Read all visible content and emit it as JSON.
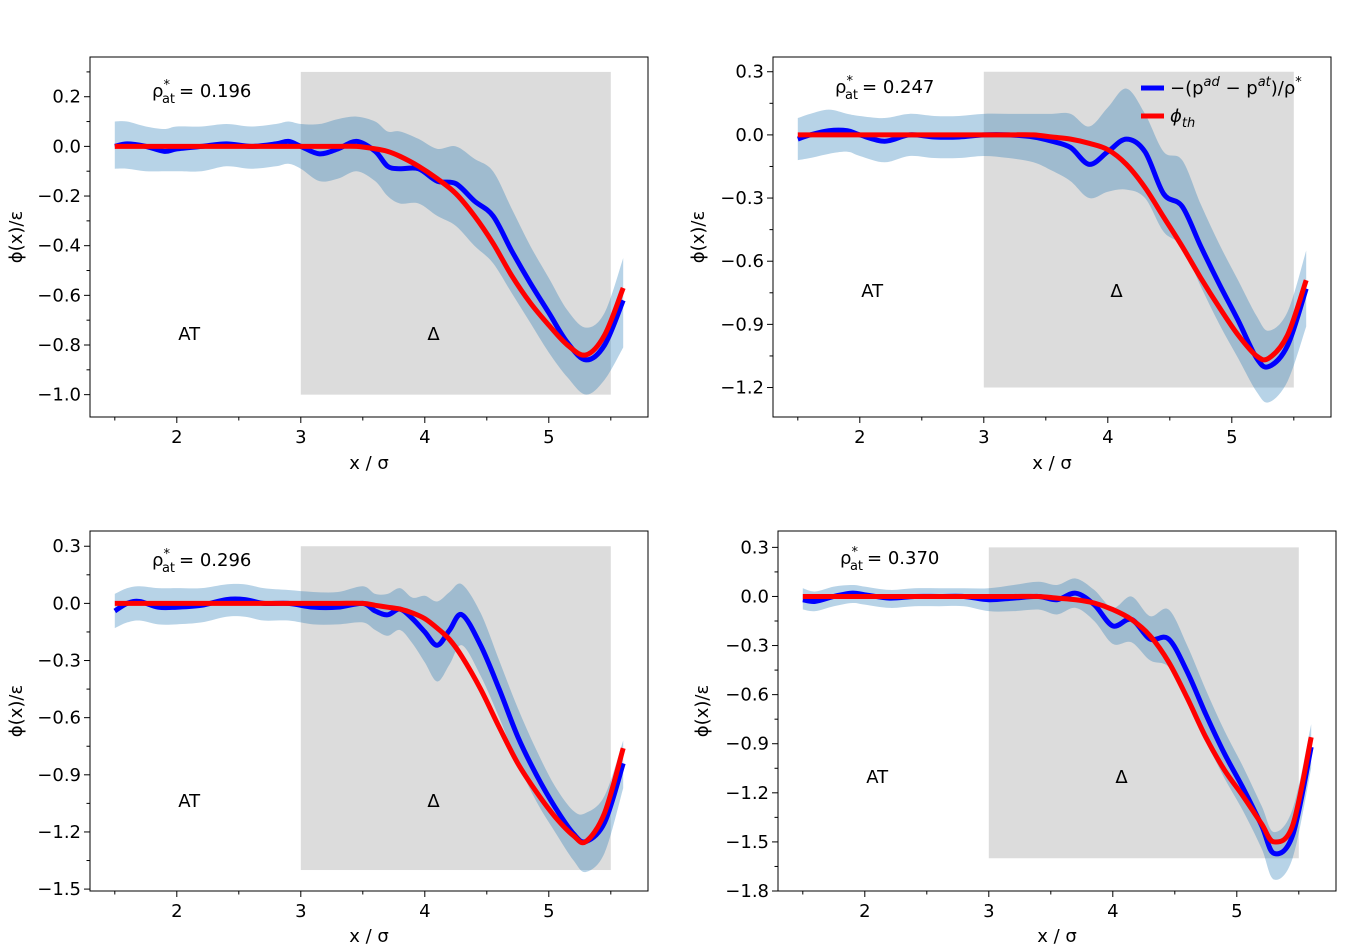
{
  "colors": {
    "shade": "#dcdcdc",
    "band": "#1f77b4",
    "sim": "#0000ff",
    "theory": "#ff0000"
  },
  "legend": {
    "sim_label": "−(p",
    "sim_sup1": "ad",
    "sim_mid": " − p",
    "sim_sup2": "at",
    "sim_tail": ")/ρ",
    "sim_star": "*",
    "th_label": "ϕ",
    "th_sub": "th"
  },
  "chart_data": [
    {
      "type": "line",
      "rho_prefix": "ρ",
      "rho_sup": "*",
      "rho_sub": "at",
      "rho_value": "= 0.196",
      "xlabel": "x / σ",
      "ylabel": "ϕ(x)/ε",
      "xlim": [
        1.3,
        5.8
      ],
      "ylim": [
        -1.09,
        0.36
      ],
      "xticks": [
        2,
        3,
        4,
        5
      ],
      "yticks": [
        -1.0,
        -0.8,
        -0.6,
        -0.4,
        -0.2,
        0.0,
        0.2
      ],
      "ytick_labels": [
        "−1.0",
        "−0.8",
        "−0.6",
        "−0.4",
        "−0.2",
        "0.0",
        "0.2"
      ],
      "shade": {
        "x0": 3.0,
        "x1": 5.5,
        "y0": -1.0,
        "y1": 0.3
      },
      "labels": [
        {
          "text": "AT",
          "x": 2.1,
          "y": -0.78
        },
        {
          "text": "Δ",
          "x": 4.07,
          "y": -0.78
        }
      ],
      "x": [
        1.5,
        1.6,
        1.75,
        1.9,
        2.0,
        2.2,
        2.4,
        2.6,
        2.8,
        2.9,
        3.0,
        3.15,
        3.3,
        3.45,
        3.6,
        3.7,
        3.8,
        3.95,
        4.1,
        4.25,
        4.4,
        4.55,
        4.7,
        4.85,
        5.0,
        5.15,
        5.3,
        5.45,
        5.6
      ],
      "sim": [
        0.0,
        0.01,
        0.0,
        -0.02,
        -0.01,
        0.0,
        0.01,
        0.0,
        0.01,
        0.02,
        0.0,
        -0.03,
        -0.01,
        0.02,
        -0.02,
        -0.08,
        -0.09,
        -0.09,
        -0.14,
        -0.15,
        -0.22,
        -0.28,
        -0.42,
        -0.55,
        -0.67,
        -0.79,
        -0.86,
        -0.8,
        -0.62
      ],
      "upper": [
        0.1,
        0.1,
        0.08,
        0.07,
        0.08,
        0.08,
        0.09,
        0.08,
        0.09,
        0.1,
        0.09,
        0.09,
        0.11,
        0.12,
        0.1,
        0.06,
        0.06,
        0.03,
        -0.01,
        0.0,
        -0.05,
        -0.1,
        -0.25,
        -0.4,
        -0.53,
        -0.66,
        -0.73,
        -0.67,
        -0.45
      ],
      "lower": [
        -0.09,
        -0.09,
        -0.1,
        -0.1,
        -0.1,
        -0.1,
        -0.08,
        -0.09,
        -0.08,
        -0.07,
        -0.09,
        -0.14,
        -0.13,
        -0.1,
        -0.14,
        -0.2,
        -0.23,
        -0.23,
        -0.28,
        -0.32,
        -0.4,
        -0.47,
        -0.59,
        -0.71,
        -0.83,
        -0.93,
        -1.0,
        -0.94,
        -0.81
      ],
      "theory": [
        0.0,
        0.0,
        0.0,
        0.0,
        0.0,
        0.0,
        0.0,
        0.0,
        0.0,
        0.0,
        0.0,
        0.0,
        0.0,
        0.0,
        -0.01,
        -0.02,
        -0.04,
        -0.08,
        -0.13,
        -0.19,
        -0.28,
        -0.39,
        -0.52,
        -0.63,
        -0.72,
        -0.8,
        -0.84,
        -0.76,
        -0.57
      ]
    },
    {
      "type": "line",
      "rho_prefix": "ρ",
      "rho_sup": "*",
      "rho_sub": "at",
      "rho_value": "= 0.247",
      "xlabel": "x / σ",
      "ylabel": "ϕ(x)/ε",
      "xlim": [
        1.3,
        5.8
      ],
      "ylim": [
        -1.34,
        0.37
      ],
      "xticks": [
        2,
        3,
        4,
        5
      ],
      "yticks": [
        -1.2,
        -0.9,
        -0.6,
        -0.3,
        0.0,
        0.3
      ],
      "ytick_labels": [
        "−1.2",
        "−0.9",
        "−0.6",
        "−0.3",
        "0.0",
        "0.3"
      ],
      "shade": {
        "x0": 3.0,
        "x1": 5.5,
        "y0": -1.2,
        "y1": 0.3
      },
      "labels": [
        {
          "text": "AT",
          "x": 2.1,
          "y": -0.77
        },
        {
          "text": "Δ",
          "x": 4.07,
          "y": -0.77
        }
      ],
      "legend": true,
      "x": [
        1.5,
        1.6,
        1.75,
        1.9,
        2.0,
        2.2,
        2.4,
        2.6,
        2.8,
        3.0,
        3.2,
        3.4,
        3.55,
        3.7,
        3.85,
        4.0,
        4.15,
        4.3,
        4.45,
        4.6,
        4.75,
        4.9,
        5.05,
        5.2,
        5.3,
        5.45,
        5.6
      ],
      "sim": [
        -0.02,
        0.0,
        0.02,
        0.02,
        0.0,
        -0.03,
        0.0,
        -0.01,
        -0.01,
        0.0,
        0.0,
        -0.01,
        -0.03,
        -0.06,
        -0.14,
        -0.08,
        -0.02,
        -0.08,
        -0.28,
        -0.34,
        -0.53,
        -0.71,
        -0.88,
        -1.06,
        -1.1,
        -1.0,
        -0.73
      ],
      "upper": [
        0.08,
        0.1,
        0.12,
        0.1,
        0.09,
        0.08,
        0.1,
        0.09,
        0.09,
        0.1,
        0.1,
        0.1,
        0.1,
        0.1,
        0.04,
        0.13,
        0.22,
        0.1,
        -0.08,
        -0.12,
        -0.33,
        -0.52,
        -0.69,
        -0.86,
        -0.93,
        -0.84,
        -0.55
      ],
      "lower": [
        -0.12,
        -0.11,
        -0.09,
        -0.08,
        -0.1,
        -0.13,
        -0.1,
        -0.11,
        -0.11,
        -0.1,
        -0.11,
        -0.13,
        -0.17,
        -0.22,
        -0.3,
        -0.27,
        -0.26,
        -0.3,
        -0.46,
        -0.53,
        -0.72,
        -0.9,
        -1.06,
        -1.22,
        -1.27,
        -1.17,
        -0.91
      ],
      "theory": [
        0.0,
        0.0,
        0.0,
        0.0,
        0.0,
        0.0,
        0.0,
        0.0,
        0.0,
        0.0,
        0.0,
        0.0,
        -0.01,
        -0.02,
        -0.04,
        -0.07,
        -0.14,
        -0.25,
        -0.39,
        -0.53,
        -0.68,
        -0.82,
        -0.95,
        -1.05,
        -1.06,
        -0.95,
        -0.69
      ]
    },
    {
      "type": "line",
      "rho_prefix": "ρ",
      "rho_sup": "*",
      "rho_sub": "at",
      "rho_value": "= 0.296",
      "xlabel": "x / σ",
      "ylabel": "ϕ(x)/ε",
      "xlim": [
        1.3,
        5.8
      ],
      "ylim": [
        -1.51,
        0.38
      ],
      "xticks": [
        2,
        3,
        4,
        5
      ],
      "yticks": [
        -1.5,
        -1.2,
        -0.9,
        -0.6,
        -0.3,
        0.0,
        0.3
      ],
      "ytick_labels": [
        "−1.5",
        "−1.2",
        "−0.9",
        "−0.6",
        "−0.3",
        "0.0",
        "0.3"
      ],
      "shade": {
        "x0": 3.0,
        "x1": 5.5,
        "y0": -1.4,
        "y1": 0.3
      },
      "labels": [
        {
          "text": "AT",
          "x": 2.1,
          "y": -1.07
        },
        {
          "text": "Δ",
          "x": 4.07,
          "y": -1.07
        }
      ],
      "x": [
        1.5,
        1.6,
        1.7,
        1.85,
        2.0,
        2.2,
        2.4,
        2.55,
        2.7,
        2.9,
        3.1,
        3.3,
        3.5,
        3.6,
        3.7,
        3.8,
        3.9,
        4.0,
        4.1,
        4.2,
        4.3,
        4.45,
        4.6,
        4.75,
        4.9,
        5.05,
        5.2,
        5.3,
        5.45,
        5.6
      ],
      "sim": [
        -0.04,
        0.0,
        0.01,
        -0.02,
        -0.02,
        -0.01,
        0.02,
        0.02,
        0.0,
        0.0,
        -0.02,
        -0.02,
        0.0,
        -0.04,
        -0.06,
        -0.03,
        -0.08,
        -0.15,
        -0.22,
        -0.14,
        -0.06,
        -0.22,
        -0.45,
        -0.7,
        -0.9,
        -1.07,
        -1.21,
        -1.25,
        -1.15,
        -0.84
      ],
      "upper": [
        0.05,
        0.08,
        0.09,
        0.08,
        0.08,
        0.08,
        0.1,
        0.1,
        0.08,
        0.07,
        0.06,
        0.06,
        0.09,
        0.05,
        0.05,
        0.08,
        0.03,
        0.04,
        0.01,
        0.06,
        0.1,
        -0.05,
        -0.3,
        -0.55,
        -0.77,
        -0.96,
        -1.09,
        -1.1,
        -1.01,
        -0.72
      ],
      "lower": [
        -0.13,
        -0.1,
        -0.09,
        -0.11,
        -0.11,
        -0.1,
        -0.07,
        -0.07,
        -0.09,
        -0.09,
        -0.11,
        -0.11,
        -0.1,
        -0.14,
        -0.17,
        -0.14,
        -0.21,
        -0.31,
        -0.41,
        -0.32,
        -0.22,
        -0.38,
        -0.6,
        -0.84,
        -1.04,
        -1.2,
        -1.35,
        -1.41,
        -1.31,
        -0.97
      ],
      "theory": [
        0.0,
        0.0,
        0.0,
        0.0,
        0.0,
        0.0,
        0.0,
        0.0,
        0.0,
        0.0,
        0.0,
        0.0,
        0.0,
        -0.01,
        -0.02,
        -0.03,
        -0.05,
        -0.08,
        -0.13,
        -0.19,
        -0.28,
        -0.45,
        -0.65,
        -0.84,
        -0.99,
        -1.12,
        -1.22,
        -1.25,
        -1.1,
        -0.76
      ]
    },
    {
      "type": "line",
      "rho_prefix": "ρ",
      "rho_sup": "*",
      "rho_sub": "at",
      "rho_value": "= 0.370",
      "xlabel": "x / σ",
      "ylabel": "ϕ(x)/ε",
      "xlim": [
        1.3,
        5.8
      ],
      "ylim": [
        -1.8,
        0.4
      ],
      "xticks": [
        2,
        3,
        4,
        5
      ],
      "yticks": [
        -1.8,
        -1.5,
        -1.2,
        -0.9,
        -0.6,
        -0.3,
        0.0,
        0.3
      ],
      "ytick_labels": [
        "−1.8",
        "−1.5",
        "−1.2",
        "−0.9",
        "−0.6",
        "−0.3",
        "0.0",
        "0.3"
      ],
      "shade": {
        "x0": 3.0,
        "x1": 5.5,
        "y0": -1.6,
        "y1": 0.3
      },
      "labels": [
        {
          "text": "AT",
          "x": 2.1,
          "y": -1.14
        },
        {
          "text": "Δ",
          "x": 4.07,
          "y": -1.14
        }
      ],
      "x": [
        1.5,
        1.6,
        1.75,
        1.9,
        2.0,
        2.2,
        2.4,
        2.6,
        2.8,
        3.0,
        3.2,
        3.4,
        3.55,
        3.7,
        3.85,
        4.0,
        4.15,
        4.3,
        4.45,
        4.6,
        4.75,
        4.9,
        5.05,
        5.2,
        5.3,
        5.45,
        5.6
      ],
      "sim": [
        -0.02,
        -0.03,
        0.0,
        0.02,
        0.01,
        -0.01,
        0.0,
        0.0,
        0.0,
        -0.02,
        -0.01,
        0.0,
        -0.02,
        0.02,
        -0.05,
        -0.18,
        -0.14,
        -0.26,
        -0.26,
        -0.46,
        -0.72,
        -0.96,
        -1.17,
        -1.4,
        -1.57,
        -1.46,
        -0.92
      ],
      "upper": [
        0.05,
        0.03,
        0.06,
        0.07,
        0.06,
        0.04,
        0.05,
        0.05,
        0.05,
        0.05,
        0.07,
        0.09,
        0.07,
        0.11,
        0.04,
        -0.07,
        0.0,
        -0.12,
        -0.08,
        -0.3,
        -0.57,
        -0.82,
        -1.04,
        -1.28,
        -1.44,
        -1.3,
        -0.78
      ],
      "lower": [
        -0.08,
        -0.09,
        -0.06,
        -0.04,
        -0.05,
        -0.07,
        -0.06,
        -0.06,
        -0.06,
        -0.09,
        -0.09,
        -0.08,
        -0.11,
        -0.07,
        -0.15,
        -0.29,
        -0.28,
        -0.39,
        -0.43,
        -0.62,
        -0.88,
        -1.11,
        -1.31,
        -1.54,
        -1.73,
        -1.6,
        -1.05
      ],
      "theory": [
        0.0,
        0.0,
        0.0,
        0.0,
        0.0,
        0.0,
        0.0,
        0.0,
        0.0,
        0.0,
        0.0,
        0.0,
        -0.01,
        -0.02,
        -0.04,
        -0.08,
        -0.14,
        -0.24,
        -0.4,
        -0.62,
        -0.86,
        -1.06,
        -1.22,
        -1.39,
        -1.5,
        -1.4,
        -0.86
      ]
    }
  ]
}
